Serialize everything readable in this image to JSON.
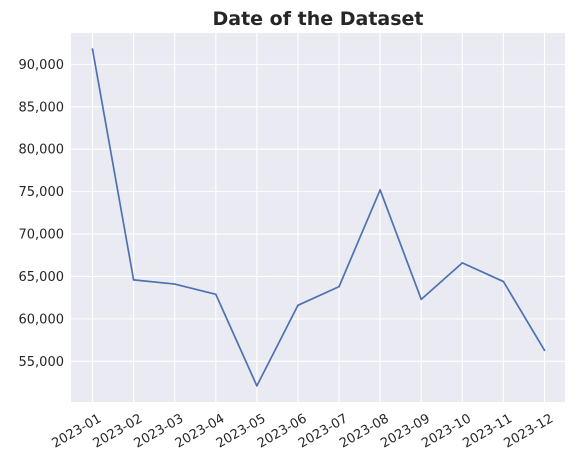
{
  "chart_data": {
    "type": "line",
    "title": "Date of the Dataset",
    "xlabel": "",
    "ylabel": "",
    "x": [
      "2023-01",
      "2023-02",
      "2023-03",
      "2023-04",
      "2023-05",
      "2023-06",
      "2023-07",
      "2023-08",
      "2023-09",
      "2023-10",
      "2023-11",
      "2023-12"
    ],
    "series": [
      {
        "values": [
          91800,
          64600,
          64100,
          62900,
          52100,
          61600,
          63800,
          75200,
          62300,
          66600,
          64400,
          56300
        ],
        "color": "#4c72b0"
      }
    ],
    "ylim": [
      50200,
      93700
    ],
    "yticks": [
      55000,
      60000,
      65000,
      70000,
      75000,
      80000,
      85000,
      90000
    ],
    "ytick_labels": [
      "55,000",
      "60,000",
      "65,000",
      "70,000",
      "75,000",
      "80,000",
      "85,000",
      "90,000"
    ],
    "grid": true,
    "background_color": "#eaeaf2",
    "grid_color": "#ffffff"
  }
}
